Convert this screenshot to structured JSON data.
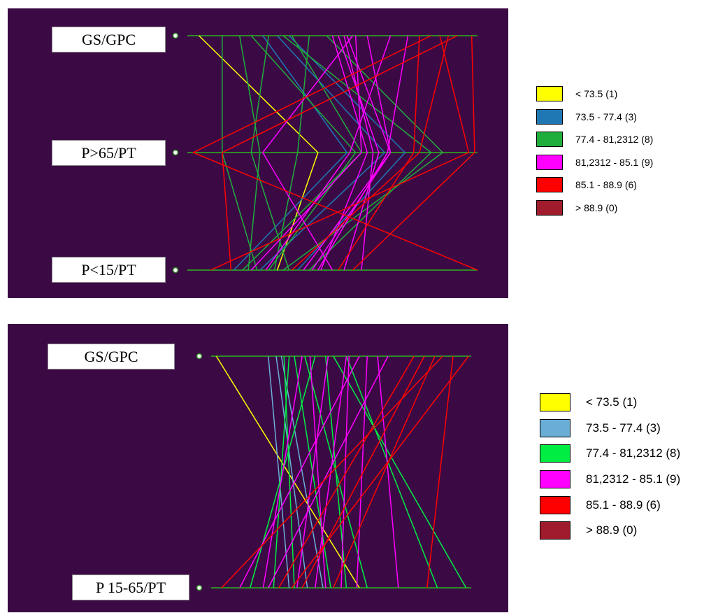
{
  "chart_data": [
    {
      "type": "parallel-coordinates",
      "axes": [
        "GS/GPC",
        "P>65/PT",
        "P<15/PT"
      ],
      "axis_range": [
        0,
        1
      ],
      "background": "#3b0a45",
      "axis_color": "#2f8a26",
      "legend": [
        {
          "label": "< 73.5 (1)",
          "color": "#ffff00"
        },
        {
          "label": "73.5 - 77.4 (3)",
          "color": "#1f77b4"
        },
        {
          "label": "77.4 - 81,2312 (8)",
          "color": "#1fae3c"
        },
        {
          "label": "81,2312 - 85.1 (9)",
          "color": "#ff00ff"
        },
        {
          "label": "85.1 - 88.9 (6)",
          "color": "#ff0000"
        },
        {
          "label": "> 88.9 (0)",
          "color": "#a01c2c"
        }
      ],
      "lines": [
        {
          "class": 0,
          "values": [
            0.04,
            0.45,
            0.31
          ]
        },
        {
          "class": 1,
          "values": [
            0.26,
            0.55,
            0.16
          ]
        },
        {
          "class": 1,
          "values": [
            0.31,
            0.68,
            0.25
          ]
        },
        {
          "class": 1,
          "values": [
            0.35,
            0.75,
            0.38
          ]
        },
        {
          "class": 2,
          "values": [
            0.12,
            0.12,
            0.24
          ]
        },
        {
          "class": 2,
          "values": [
            0.18,
            0.25,
            0.21
          ]
        },
        {
          "class": 2,
          "values": [
            0.22,
            0.58,
            0.28
          ]
        },
        {
          "class": 2,
          "values": [
            0.28,
            0.22,
            0.35
          ]
        },
        {
          "class": 2,
          "values": [
            0.33,
            0.84,
            0.42
          ]
        },
        {
          "class": 2,
          "values": [
            0.36,
            0.6,
            0.19
          ]
        },
        {
          "class": 2,
          "values": [
            0.42,
            0.38,
            0.3
          ]
        },
        {
          "class": 2,
          "values": [
            0.48,
            0.88,
            0.33
          ]
        },
        {
          "class": 3,
          "values": [
            0.5,
            0.62,
            0.46
          ]
        },
        {
          "class": 3,
          "values": [
            0.52,
            0.66,
            0.54
          ]
        },
        {
          "class": 3,
          "values": [
            0.54,
            0.64,
            0.6
          ]
        },
        {
          "class": 3,
          "values": [
            0.55,
            0.7,
            0.43
          ]
        },
        {
          "class": 3,
          "values": [
            0.57,
            0.26,
            0.5
          ]
        },
        {
          "class": 3,
          "values": [
            0.58,
            0.6,
            0.22
          ]
        },
        {
          "class": 3,
          "values": [
            0.62,
            0.7,
            0.4
          ]
        },
        {
          "class": 3,
          "values": [
            0.7,
            0.56,
            0.27
          ]
        },
        {
          "class": 3,
          "values": [
            0.76,
            0.69,
            0.45
          ]
        },
        {
          "class": 4,
          "values": [
            0.8,
            0.78,
            0.52
          ]
        },
        {
          "class": 4,
          "values": [
            0.84,
            0.02,
            1.0
          ]
        },
        {
          "class": 4,
          "values": [
            0.87,
            0.97,
            0.08
          ]
        },
        {
          "class": 4,
          "values": [
            0.9,
            0.8,
            0.36
          ]
        },
        {
          "class": 4,
          "values": [
            0.93,
            0.12,
            0.15
          ]
        },
        {
          "class": 4,
          "values": [
            0.98,
            0.99,
            0.57
          ]
        }
      ]
    },
    {
      "type": "parallel-coordinates",
      "axes": [
        "GS/GPC",
        "P 15-65/PT"
      ],
      "axis_range": [
        0,
        1
      ],
      "background": "#3b0a45",
      "axis_color": "#2f8a26",
      "legend": [
        {
          "label": "< 73.5 (1)",
          "color": "#ffff00"
        },
        {
          "label": "73.5 - 77.4 (3)",
          "color": "#6aaed6"
        },
        {
          "label": "77.4 - 81,2312 (8)",
          "color": "#00ee44"
        },
        {
          "label": "81,2312 - 85.1 (9)",
          "color": "#ff00ff"
        },
        {
          "label": "85.1 - 88.9 (6)",
          "color": "#ff0000"
        },
        {
          "label": "> 88.9 (0)",
          "color": "#a01c2c"
        }
      ],
      "lines": [
        {
          "class": 0,
          "values": [
            0.02,
            0.57
          ]
        },
        {
          "class": 1,
          "values": [
            0.22,
            0.3
          ]
        },
        {
          "class": 1,
          "values": [
            0.25,
            0.37
          ]
        },
        {
          "class": 1,
          "values": [
            0.27,
            0.43
          ]
        },
        {
          "class": 2,
          "values": [
            0.28,
            0.32
          ]
        },
        {
          "class": 2,
          "values": [
            0.3,
            0.24
          ]
        },
        {
          "class": 2,
          "values": [
            0.32,
            0.46
          ]
        },
        {
          "class": 2,
          "values": [
            0.36,
            0.6
          ]
        },
        {
          "class": 2,
          "values": [
            0.4,
            0.15
          ]
        },
        {
          "class": 2,
          "values": [
            0.44,
            0.52
          ]
        },
        {
          "class": 2,
          "values": [
            0.47,
            0.98
          ]
        },
        {
          "class": 2,
          "values": [
            0.52,
            0.87
          ]
        },
        {
          "class": 3,
          "values": [
            0.35,
            0.2
          ]
        },
        {
          "class": 3,
          "values": [
            0.38,
            0.44
          ]
        },
        {
          "class": 3,
          "values": [
            0.45,
            0.33
          ]
        },
        {
          "class": 3,
          "values": [
            0.52,
            0.4
          ]
        },
        {
          "class": 3,
          "values": [
            0.53,
            0.5
          ]
        },
        {
          "class": 3,
          "values": [
            0.57,
            0.11
          ]
        },
        {
          "class": 3,
          "values": [
            0.6,
            0.56
          ]
        },
        {
          "class": 3,
          "values": [
            0.64,
            0.72
          ]
        },
        {
          "class": 3,
          "values": [
            0.68,
            0.22
          ]
        },
        {
          "class": 4,
          "values": [
            0.78,
            0.26
          ]
        },
        {
          "class": 4,
          "values": [
            0.82,
            0.35
          ]
        },
        {
          "class": 4,
          "values": [
            0.86,
            0.47
          ]
        },
        {
          "class": 4,
          "values": [
            0.89,
            0.04
          ]
        },
        {
          "class": 4,
          "values": [
            0.93,
            0.83
          ]
        },
        {
          "class": 4,
          "values": [
            0.99,
            0.31
          ]
        }
      ]
    }
  ]
}
